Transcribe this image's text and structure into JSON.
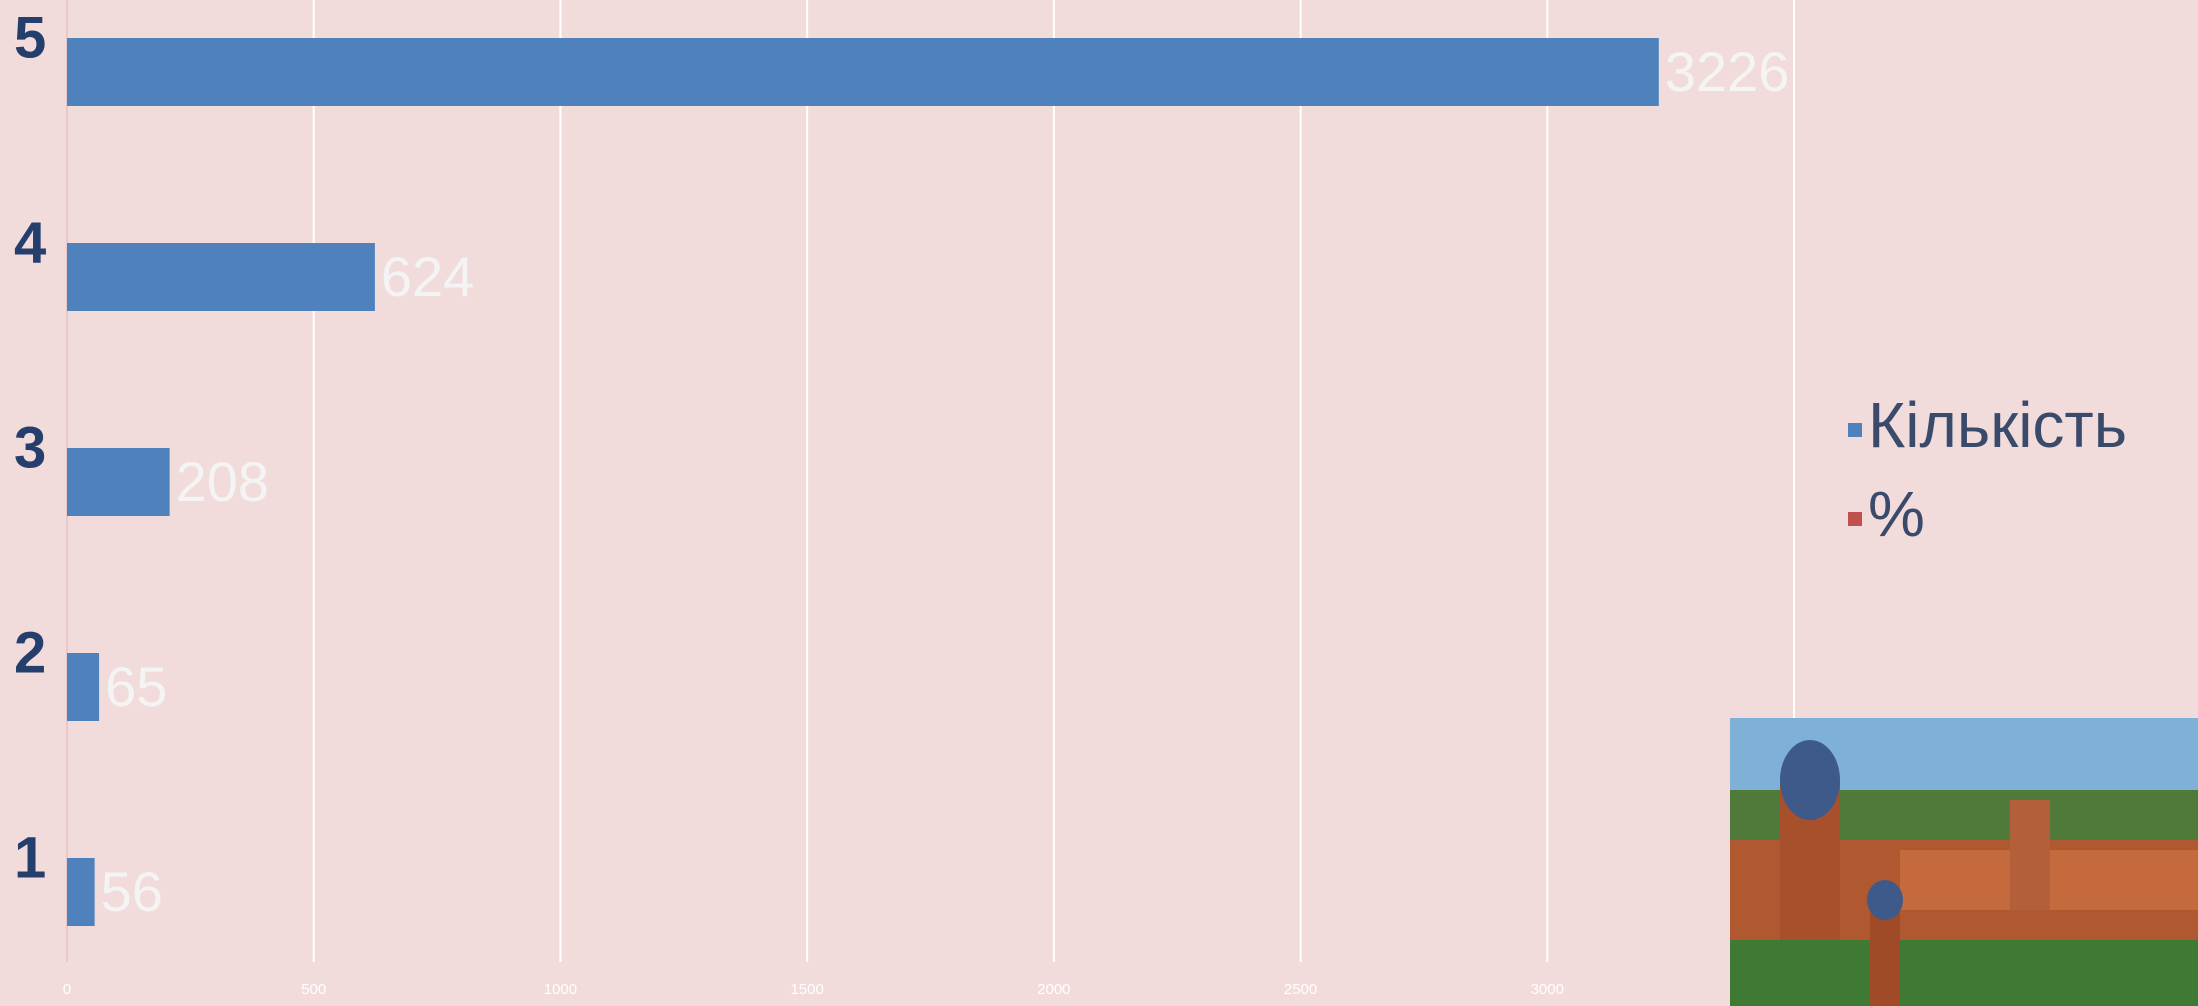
{
  "chart_data": {
    "type": "bar",
    "orientation": "horizontal",
    "categories": [
      "1",
      "2",
      "3",
      "4",
      "5"
    ],
    "series": [
      {
        "name": "Кількість",
        "color": "#4f81bd",
        "values": [
          56,
          65,
          208,
          624,
          3226
        ]
      },
      {
        "name": "%",
        "color": "#c0504d",
        "values": [
          null,
          null,
          null,
          null,
          null
        ]
      }
    ],
    "xlim": [
      0,
      3500
    ],
    "xticks": [
      0,
      500,
      1000,
      1500,
      2000,
      2500,
      3000
    ],
    "grid": true,
    "legend": "right"
  }
}
